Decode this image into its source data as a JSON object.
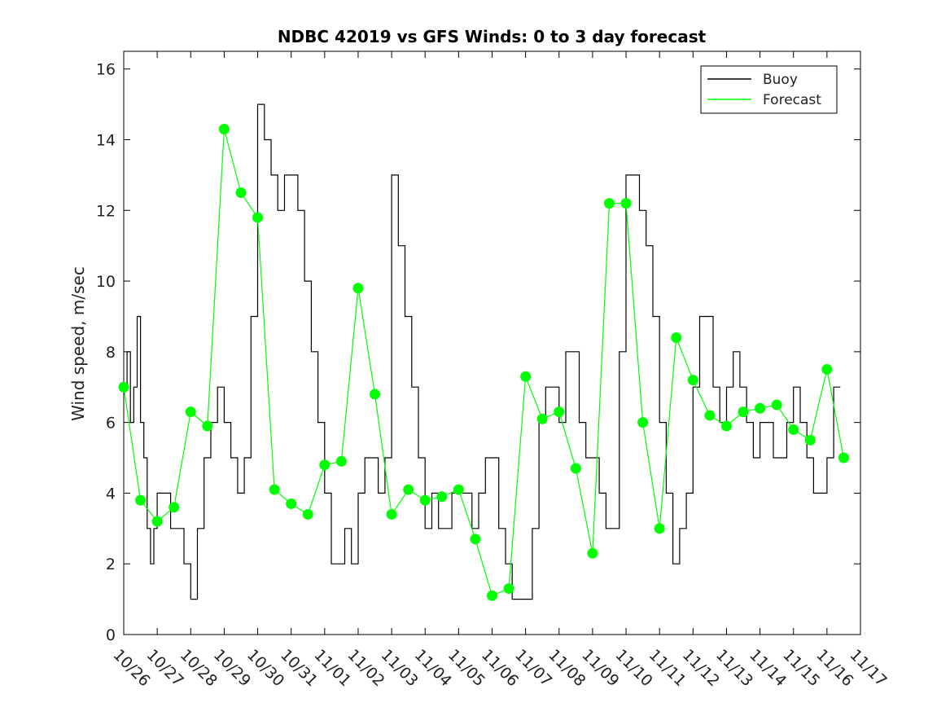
{
  "chart_data": {
    "type": "line",
    "title": "NDBC 42019 vs GFS Winds: 0 to 3 day forecast",
    "xlabel": "",
    "ylabel": "Wind speed, m/sec",
    "xlim": [
      0,
      22
    ],
    "ylim": [
      0,
      16.5
    ],
    "x_tick_values": [
      0,
      1,
      2,
      3,
      4,
      5,
      6,
      7,
      8,
      9,
      10,
      11,
      12,
      13,
      14,
      15,
      16,
      17,
      18,
      19,
      20,
      21,
      22
    ],
    "x_tick_labels": [
      "10/26",
      "10/27",
      "10/28",
      "10/29",
      "10/30",
      "10/31",
      "11/01",
      "11/02",
      "11/03",
      "11/04",
      "11/05",
      "11/06",
      "11/07",
      "11/08",
      "11/09",
      "11/10",
      "11/11",
      "11/12",
      "11/13",
      "11/14",
      "11/15",
      "11/16",
      "11/17"
    ],
    "y_ticks": [
      0,
      2,
      4,
      6,
      8,
      10,
      12,
      14,
      16
    ],
    "grid": false,
    "legend_position": "top-right",
    "legend": [
      "Buoy",
      "Forecast"
    ],
    "colors": {
      "buoy": "#000000",
      "forecast": "#00ff00",
      "markers": "#00ff00"
    },
    "buoy": {
      "name": "Buoy",
      "x": [
        0,
        0.1,
        0.2,
        0.3,
        0.4,
        0.5,
        0.6,
        0.7,
        0.8,
        0.9,
        1.0,
        1.2,
        1.4,
        1.6,
        1.8,
        2.0,
        2.2,
        2.4,
        2.6,
        2.8,
        3.0,
        3.2,
        3.4,
        3.6,
        3.8,
        4.0,
        4.2,
        4.4,
        4.6,
        4.8,
        5.0,
        5.2,
        5.4,
        5.6,
        5.8,
        6.0,
        6.2,
        6.4,
        6.6,
        6.8,
        7.0,
        7.2,
        7.4,
        7.6,
        7.8,
        8.0,
        8.2,
        8.4,
        8.6,
        8.8,
        9.0,
        9.2,
        9.4,
        9.6,
        9.8,
        10.0,
        10.2,
        10.4,
        10.6,
        10.8,
        11.0,
        11.2,
        11.4,
        11.6,
        11.8,
        12.0,
        12.2,
        12.4,
        12.6,
        12.8,
        13.0,
        13.2,
        13.4,
        13.6,
        13.8,
        14.0,
        14.2,
        14.4,
        14.6,
        14.8,
        15.0,
        15.2,
        15.4,
        15.6,
        15.8,
        16.0,
        16.2,
        16.4,
        16.6,
        16.8,
        17.0,
        17.2,
        17.4,
        17.6,
        17.8,
        18.0,
        18.2,
        18.4,
        18.6,
        18.8,
        19.0,
        19.2,
        19.4,
        19.6,
        19.8,
        20.0,
        20.2,
        20.4,
        20.6,
        20.8,
        21.0,
        21.2,
        21.4
      ],
      "y": [
        7,
        8,
        6,
        7,
        9,
        6,
        5,
        3,
        2,
        3,
        4,
        4,
        3,
        3,
        2,
        1,
        3,
        5,
        6,
        7,
        6,
        5,
        4,
        5,
        9,
        15,
        14,
        13,
        12,
        13,
        13,
        12,
        10,
        8,
        6,
        4,
        2,
        2,
        3,
        2,
        4,
        5,
        5,
        4,
        5,
        13,
        11,
        9,
        7,
        5,
        3,
        4,
        3,
        3,
        4,
        4,
        4,
        3,
        4,
        5,
        5,
        3,
        2,
        1,
        1,
        1,
        3,
        6,
        7,
        7,
        6,
        8,
        8,
        6,
        5,
        5,
        4,
        3,
        3,
        8,
        13,
        13,
        12,
        11,
        9,
        6,
        4,
        2,
        3,
        4,
        7,
        9,
        9,
        7,
        6,
        7,
        8,
        7,
        6,
        5,
        6,
        6,
        5,
        5,
        6,
        7,
        6,
        5,
        4,
        4,
        5,
        7,
        7
      ]
    },
    "forecast_markers": {
      "name": "Forecast",
      "x": [
        0,
        0.5,
        1.0,
        1.5,
        2.0,
        2.5,
        3.0,
        3.5,
        4.0,
        4.5,
        5.0,
        5.5,
        6.0,
        6.5,
        7.0,
        7.5,
        8.0,
        8.5,
        9.0,
        9.5,
        10.0,
        10.5,
        11.0,
        11.5,
        12.0,
        12.5,
        13.0,
        13.5,
        14.0,
        14.5,
        15.0,
        15.5,
        16.0,
        16.5,
        17.0,
        17.5,
        18.0,
        18.5,
        19.0,
        19.5,
        20.0,
        20.5,
        21.0,
        21.5
      ],
      "y": [
        7,
        3.8,
        3.2,
        3.6,
        6.3,
        5.9,
        14.3,
        12.5,
        11.8,
        4.1,
        3.7,
        3.4,
        4.8,
        4.9,
        9.8,
        6.8,
        3.4,
        4.1,
        3.8,
        3.9,
        4.1,
        2.7,
        1.1,
        1.3,
        7.3,
        6.1,
        6.3,
        4.7,
        2.3,
        12.2,
        12.2,
        6.0,
        3.0,
        8.4,
        7.2,
        6.2,
        5.9,
        6.3,
        6.4,
        6.5,
        5.8,
        5.5,
        7.5,
        5.0
      ],
      "y_note": "dots at 12-hourly intervals"
    }
  }
}
